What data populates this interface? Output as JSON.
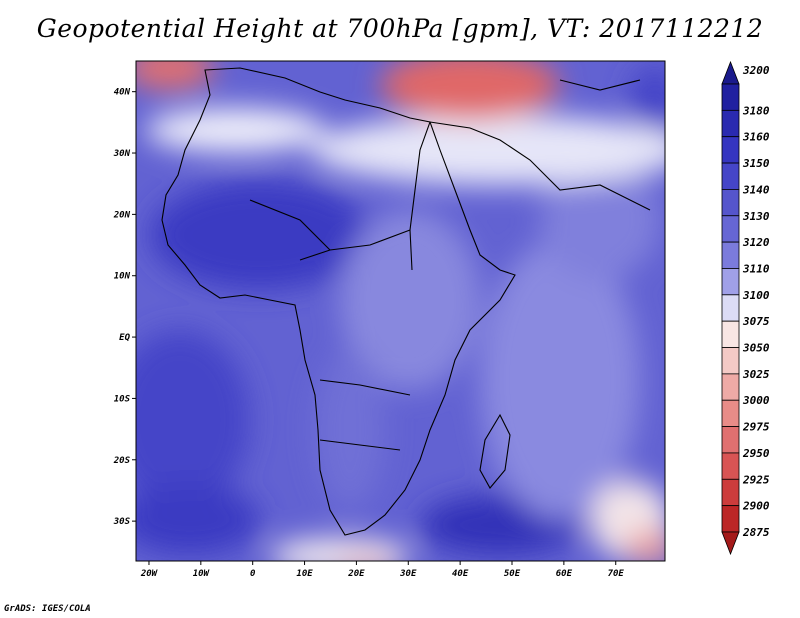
{
  "title": "Geopotential Height at 700hPa [gpm], VT: 2017112212",
  "credit": "GrADS: IGES/COLA",
  "map": {
    "lat_labels": [
      {
        "label": "40N",
        "lat": 40
      },
      {
        "label": "30N",
        "lat": 30
      },
      {
        "label": "20N",
        "lat": 20
      },
      {
        "label": "10N",
        "lat": 10
      },
      {
        "label": "EQ",
        "lat": 0
      },
      {
        "label": "10S",
        "lat": -10
      },
      {
        "label": "20S",
        "lat": -20
      },
      {
        "label": "30S",
        "lat": -30
      }
    ],
    "lon_labels": [
      {
        "label": "20W",
        "lon": -20
      },
      {
        "label": "10W",
        "lon": -10
      },
      {
        "label": "0",
        "lon": 0
      },
      {
        "label": "10E",
        "lon": 10
      },
      {
        "label": "20E",
        "lon": 20
      },
      {
        "label": "30E",
        "lon": 30
      },
      {
        "label": "40E",
        "lon": 40
      },
      {
        "label": "50E",
        "lon": 50
      },
      {
        "label": "60E",
        "lon": 60
      },
      {
        "label": "70E",
        "lon": 70
      }
    ],
    "lon_range": [
      -22.5,
      79.5
    ],
    "lat_range": [
      -36.5,
      45
    ]
  },
  "colorbar": {
    "levels": [
      "3200",
      "3180",
      "3160",
      "3150",
      "3140",
      "3130",
      "3120",
      "3110",
      "3100",
      "3075",
      "3050",
      "3025",
      "3000",
      "2975",
      "2950",
      "2925",
      "2900",
      "2875"
    ],
    "colors": [
      "#2020a0",
      "#2a2ab0",
      "#3535c0",
      "#4545c8",
      "#5555cc",
      "#6666d4",
      "#7b7bdc",
      "#a0a0e8",
      "#dcdcf6",
      "#f8e6e4",
      "#f4cac6",
      "#eeaaa6",
      "#e88c88",
      "#e07070",
      "#d85454",
      "#cc3c3c",
      "#bc2626"
    ],
    "top_arrow_color": "#1a1a8c",
    "bottom_arrow_color": "#a41a1a"
  }
}
